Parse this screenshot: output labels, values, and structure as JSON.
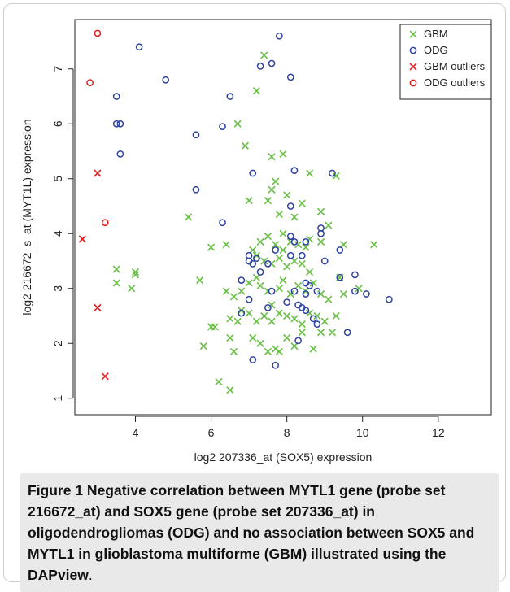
{
  "chart_data": {
    "type": "scatter",
    "xlabel": "log2  207336_at (SOX5) expression",
    "ylabel": "log2  216672_s_at (MYT1L) expression",
    "xlim": [
      2.4,
      13.4
    ],
    "ylim": [
      0.7,
      7.9
    ],
    "xticks": [
      4,
      6,
      8,
      10,
      12
    ],
    "yticks": [
      1,
      2,
      3,
      4,
      5,
      6,
      7
    ],
    "grid": false,
    "legend_position": "top-right",
    "legend": [
      {
        "label": "GBM",
        "marker": "x",
        "color": "#6cc04a"
      },
      {
        "label": "ODG",
        "marker": "o",
        "color": "#2e43a0"
      },
      {
        "label": "GBM  outliers",
        "marker": "x",
        "color": "#e02020"
      },
      {
        "label": "ODG  outliers",
        "marker": "o",
        "color": "#e02020"
      }
    ],
    "series": [
      {
        "name": "GBM",
        "marker": "x",
        "color": "#6cc04a",
        "points": [
          [
            7.4,
            7.25
          ],
          [
            7.2,
            6.6
          ],
          [
            6.7,
            6.0
          ],
          [
            6.9,
            5.6
          ],
          [
            7.6,
            5.4
          ],
          [
            7.9,
            5.45
          ],
          [
            8.6,
            5.1
          ],
          [
            9.3,
            5.05
          ],
          [
            7.7,
            4.95
          ],
          [
            7.6,
            4.8
          ],
          [
            7.0,
            4.6
          ],
          [
            7.5,
            4.6
          ],
          [
            8.0,
            4.7
          ],
          [
            8.4,
            4.55
          ],
          [
            8.9,
            4.4
          ],
          [
            5.4,
            4.3
          ],
          [
            7.8,
            4.35
          ],
          [
            8.2,
            4.3
          ],
          [
            9.1,
            4.15
          ],
          [
            6.0,
            3.75
          ],
          [
            6.4,
            3.8
          ],
          [
            7.3,
            3.85
          ],
          [
            7.5,
            3.95
          ],
          [
            7.7,
            3.8
          ],
          [
            7.9,
            3.7
          ],
          [
            8.1,
            3.85
          ],
          [
            8.3,
            3.8
          ],
          [
            8.5,
            3.75
          ],
          [
            8.6,
            3.9
          ],
          [
            8.9,
            3.85
          ],
          [
            9.5,
            3.8
          ],
          [
            10.3,
            3.8
          ],
          [
            7.2,
            3.6
          ],
          [
            7.4,
            3.5
          ],
          [
            7.6,
            3.45
          ],
          [
            7.8,
            3.55
          ],
          [
            8.0,
            3.4
          ],
          [
            8.2,
            3.5
          ],
          [
            8.4,
            3.45
          ],
          [
            8.6,
            3.3
          ],
          [
            3.5,
            3.35
          ],
          [
            4.0,
            3.3
          ],
          [
            4.0,
            3.25
          ],
          [
            3.5,
            3.1
          ],
          [
            3.9,
            3.0
          ],
          [
            5.7,
            3.15
          ],
          [
            6.4,
            2.95
          ],
          [
            6.6,
            2.85
          ],
          [
            6.8,
            2.95
          ],
          [
            7.0,
            3.1
          ],
          [
            7.2,
            3.2
          ],
          [
            7.3,
            3.05
          ],
          [
            7.5,
            2.95
          ],
          [
            7.8,
            3.0
          ],
          [
            7.9,
            3.15
          ],
          [
            8.1,
            2.9
          ],
          [
            8.3,
            3.05
          ],
          [
            8.5,
            2.95
          ],
          [
            8.7,
            3.1
          ],
          [
            8.9,
            2.9
          ],
          [
            9.1,
            2.8
          ],
          [
            9.5,
            2.9
          ],
          [
            6.1,
            2.3
          ],
          [
            6.0,
            2.3
          ],
          [
            6.5,
            2.45
          ],
          [
            6.7,
            2.4
          ],
          [
            7.0,
            2.55
          ],
          [
            7.2,
            2.4
          ],
          [
            7.4,
            2.5
          ],
          [
            7.6,
            2.4
          ],
          [
            7.8,
            2.55
          ],
          [
            8.0,
            2.5
          ],
          [
            8.2,
            2.45
          ],
          [
            8.4,
            2.35
          ],
          [
            8.6,
            2.55
          ],
          [
            8.8,
            2.5
          ],
          [
            9.0,
            2.4
          ],
          [
            9.3,
            2.5
          ],
          [
            5.8,
            1.95
          ],
          [
            6.5,
            2.1
          ],
          [
            6.6,
            1.85
          ],
          [
            7.1,
            2.1
          ],
          [
            7.3,
            2.0
          ],
          [
            7.5,
            1.85
          ],
          [
            7.7,
            1.9
          ],
          [
            7.8,
            1.85
          ],
          [
            8.0,
            2.1
          ],
          [
            8.2,
            1.95
          ],
          [
            8.4,
            2.2
          ],
          [
            8.7,
            1.9
          ],
          [
            9.2,
            2.2
          ],
          [
            6.2,
            1.3
          ],
          [
            6.5,
            1.15
          ],
          [
            6.8,
            2.6
          ],
          [
            7.6,
            2.7
          ],
          [
            8.9,
            2.2
          ],
          [
            9.9,
            3.0
          ],
          [
            9.4,
            3.2
          ],
          [
            7.9,
            4.0
          ],
          [
            7.1,
            3.7
          ]
        ]
      },
      {
        "name": "ODG",
        "marker": "o",
        "color": "#2e43a0",
        "points": [
          [
            7.8,
            7.6
          ],
          [
            4.1,
            7.4
          ],
          [
            7.6,
            7.1
          ],
          [
            7.3,
            7.05
          ],
          [
            8.1,
            6.85
          ],
          [
            4.8,
            6.8
          ],
          [
            3.5,
            6.5
          ],
          [
            6.5,
            6.5
          ],
          [
            3.5,
            6.0
          ],
          [
            3.6,
            6.0
          ],
          [
            6.3,
            5.95
          ],
          [
            5.6,
            5.8
          ],
          [
            3.6,
            5.45
          ],
          [
            8.2,
            5.15
          ],
          [
            7.1,
            5.1
          ],
          [
            9.2,
            5.1
          ],
          [
            5.6,
            4.8
          ],
          [
            8.1,
            4.5
          ],
          [
            6.3,
            4.2
          ],
          [
            8.9,
            4.1
          ],
          [
            8.9,
            4.0
          ],
          [
            8.1,
            3.95
          ],
          [
            7.7,
            3.7
          ],
          [
            8.4,
            3.6
          ],
          [
            8.2,
            3.85
          ],
          [
            8.5,
            3.85
          ],
          [
            9.4,
            3.7
          ],
          [
            7.0,
            3.6
          ],
          [
            7.0,
            3.5
          ],
          [
            7.1,
            3.45
          ],
          [
            9.0,
            3.5
          ],
          [
            7.2,
            3.55
          ],
          [
            7.3,
            3.3
          ],
          [
            9.8,
            3.25
          ],
          [
            9.4,
            3.2
          ],
          [
            6.8,
            3.15
          ],
          [
            8.5,
            3.1
          ],
          [
            8.6,
            3.05
          ],
          [
            7.6,
            2.95
          ],
          [
            8.2,
            2.95
          ],
          [
            8.5,
            2.9
          ],
          [
            8.8,
            2.95
          ],
          [
            7.0,
            2.8
          ],
          [
            8.0,
            2.75
          ],
          [
            8.3,
            2.7
          ],
          [
            8.4,
            2.65
          ],
          [
            7.5,
            2.65
          ],
          [
            8.5,
            2.6
          ],
          [
            9.8,
            2.95
          ],
          [
            10.1,
            2.9
          ],
          [
            10.7,
            2.8
          ],
          [
            6.8,
            2.55
          ],
          [
            8.8,
            2.35
          ],
          [
            9.6,
            2.2
          ],
          [
            8.3,
            2.05
          ],
          [
            7.1,
            1.7
          ],
          [
            7.7,
            1.6
          ],
          [
            8.7,
            2.45
          ],
          [
            8.1,
            3.6
          ],
          [
            7.5,
            3.45
          ]
        ]
      },
      {
        "name": "GBM  outliers",
        "marker": "x",
        "color": "#e02020",
        "points": [
          [
            3.0,
            5.1
          ],
          [
            2.6,
            3.9
          ],
          [
            3.0,
            2.65
          ],
          [
            3.2,
            1.4
          ]
        ]
      },
      {
        "name": "ODG  outliers",
        "marker": "o",
        "color": "#e02020",
        "points": [
          [
            3.0,
            7.65
          ],
          [
            2.8,
            6.75
          ],
          [
            3.2,
            4.2
          ]
        ]
      }
    ]
  },
  "caption": {
    "bold": "Figure 1 Negative correlation between MYTL1 gene (probe set 216672_at) and SOX5 gene (probe set 207336_at) in oligodendrogliomas (ODG) and no association between SOX5 and MYTL1 in glioblastoma multiforme (GBM) illustrated using the DAPview",
    "tail": "."
  }
}
